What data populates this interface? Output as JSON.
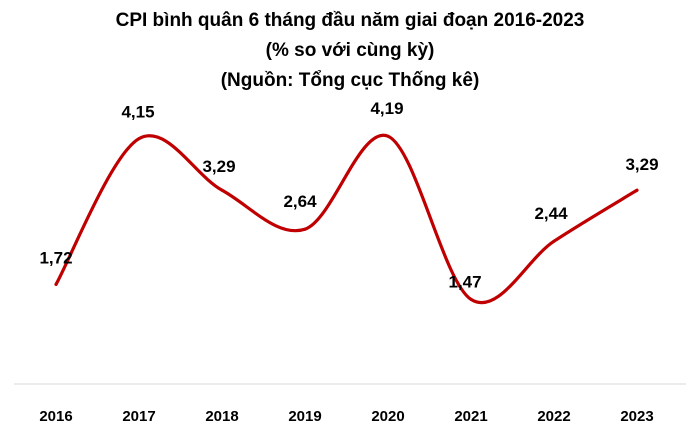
{
  "chart_data": {
    "type": "line",
    "title": "CPI bình quân 6 tháng đầu năm giai đoạn 2016-2023",
    "subtitle": "(% so với cùng kỳ)",
    "source": "(Nguồn: Tổng cục Thống kê)",
    "categories": [
      "2016",
      "2017",
      "2018",
      "2019",
      "2020",
      "2021",
      "2022",
      "2023"
    ],
    "values": [
      1.72,
      4.15,
      3.29,
      2.64,
      4.19,
      1.47,
      2.44,
      3.29
    ],
    "value_labels": [
      "1,72",
      "4,15",
      "3,29",
      "2,64",
      "4,19",
      "1,47",
      "2,44",
      "3,29"
    ],
    "ylim": [
      0,
      5
    ],
    "line_color": "#C00000",
    "axis_color": "#D9D9D9",
    "grid": false,
    "legend": "none",
    "smooth": true
  }
}
